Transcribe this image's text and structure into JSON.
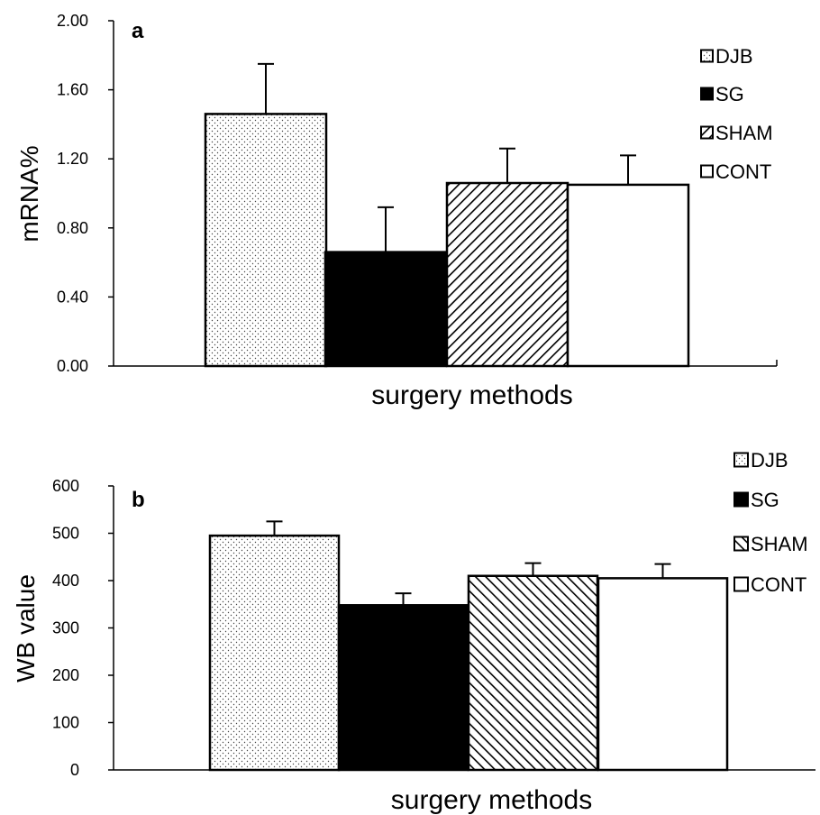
{
  "chart_data": [
    {
      "type": "bar",
      "panel_label": "a",
      "xlabel": "surgery methods",
      "ylabel": "mRNA%",
      "ylim": [
        0,
        2.0
      ],
      "yticks": [
        "0.00",
        "0.40",
        "0.80",
        "1.20",
        "1.60",
        "2.00"
      ],
      "categories": [
        "DJB",
        "SG",
        "SHAM",
        "CONT"
      ],
      "values": [
        1.46,
        0.66,
        1.06,
        1.05
      ],
      "errors": [
        0.29,
        0.26,
        0.2,
        0.17
      ],
      "legend": [
        "DJB",
        "SG",
        "SHAM",
        "CONT"
      ],
      "legend_position": "top-right",
      "grid": false
    },
    {
      "type": "bar",
      "panel_label": "b",
      "xlabel": "surgery methods",
      "ylabel": "WB value",
      "ylim": [
        0,
        600
      ],
      "yticks": [
        "0",
        "100",
        "200",
        "300",
        "400",
        "500",
        "600"
      ],
      "categories": [
        "DJB",
        "SG",
        "SHAM",
        "CONT"
      ],
      "values": [
        495,
        348,
        410,
        405
      ],
      "errors": [
        30,
        25,
        27,
        30
      ],
      "legend": [
        "DJB",
        "SG",
        "SHAM",
        "CONT"
      ],
      "legend_position": "top-right",
      "grid": false
    }
  ],
  "styles": {
    "DJB": "dots",
    "SG": "solid-black",
    "SHAM": "diagonal-hatch",
    "CONT": "white"
  }
}
